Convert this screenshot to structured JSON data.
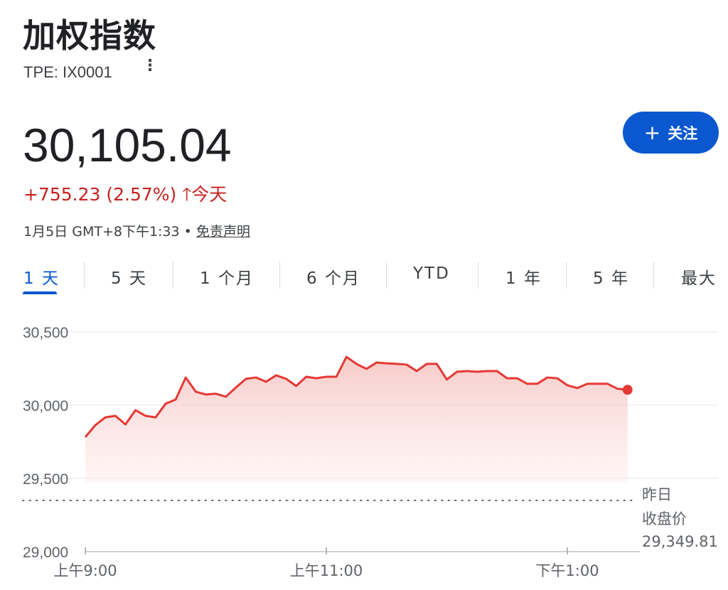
{
  "header": {
    "title": "加权指数",
    "ticker": "TPE: IX0001",
    "more_icon": "more-vert-icon",
    "price": "30,105.04",
    "change": "+755.23 (2.57%)",
    "change_icon": "arrow-up-icon",
    "change_period": "今天",
    "timestamp": "1月5日 GMT+8下午1:33 •",
    "disclaimer": "免责声明",
    "follow_label": "关注",
    "follow_icon": "plus-icon"
  },
  "colors": {
    "accent": "#0b57d0",
    "negative_change_text": "#c5221f",
    "line": "#e53935"
  },
  "tabs": [
    {
      "label": "1 天",
      "active": true
    },
    {
      "label": "5 天"
    },
    {
      "label": "1 个月"
    },
    {
      "label": "6 个月"
    },
    {
      "label": "YTD"
    },
    {
      "label": "1 年"
    },
    {
      "label": "5 年"
    },
    {
      "label": "最大"
    }
  ],
  "chart_data": {
    "type": "area",
    "x_tick_labels": [
      "上午9:00",
      "上午11:00",
      "下午1:00"
    ],
    "x_ticks": [
      "09:00",
      "11:00",
      "13:00"
    ],
    "xlim": [
      "09:00",
      "13:33"
    ],
    "y_tick_labels": [
      "30,500",
      "30,000",
      "29,500",
      "29,000"
    ],
    "ylim": [
      29000,
      30500
    ],
    "grid": true,
    "previous_close": {
      "label_lines": [
        "昨日",
        "收盘价"
      ],
      "value_label": "29,349.81",
      "value": 29349.81
    },
    "series": [
      {
        "x": [
          "09:00",
          "09:05",
          "09:10",
          "09:15",
          "09:20",
          "09:25",
          "09:30",
          "09:35",
          "09:40",
          "09:45",
          "09:50",
          "09:55",
          "10:00",
          "10:05",
          "10:10",
          "10:15",
          "10:20",
          "10:25",
          "10:30",
          "10:35",
          "10:40",
          "10:45",
          "10:50",
          "10:55",
          "11:00",
          "11:05",
          "11:10",
          "11:15",
          "11:20",
          "11:25",
          "11:30",
          "11:35",
          "11:40",
          "11:45",
          "11:50",
          "11:55",
          "12:00",
          "12:05",
          "12:10",
          "12:15",
          "12:20",
          "12:25",
          "12:30",
          "12:35",
          "12:40",
          "12:45",
          "12:50",
          "12:55",
          "13:00",
          "13:05",
          "13:10",
          "13:15",
          "13:20",
          "13:25",
          "13:30"
        ],
        "values": [
          29782,
          29864,
          29917,
          29927,
          29869,
          29966,
          29927,
          29917,
          30010,
          30039,
          30189,
          30092,
          30073,
          30078,
          30058,
          30121,
          30180,
          30189,
          30160,
          30204,
          30180,
          30131,
          30194,
          30184,
          30194,
          30194,
          30330,
          30282,
          30248,
          30291,
          30286,
          30282,
          30277,
          30233,
          30282,
          30282,
          30175,
          30228,
          30233,
          30228,
          30233,
          30233,
          30184,
          30184,
          30146,
          30146,
          30189,
          30184,
          30136,
          30117,
          30146,
          30146,
          30146,
          30112,
          30105
        ]
      }
    ]
  }
}
